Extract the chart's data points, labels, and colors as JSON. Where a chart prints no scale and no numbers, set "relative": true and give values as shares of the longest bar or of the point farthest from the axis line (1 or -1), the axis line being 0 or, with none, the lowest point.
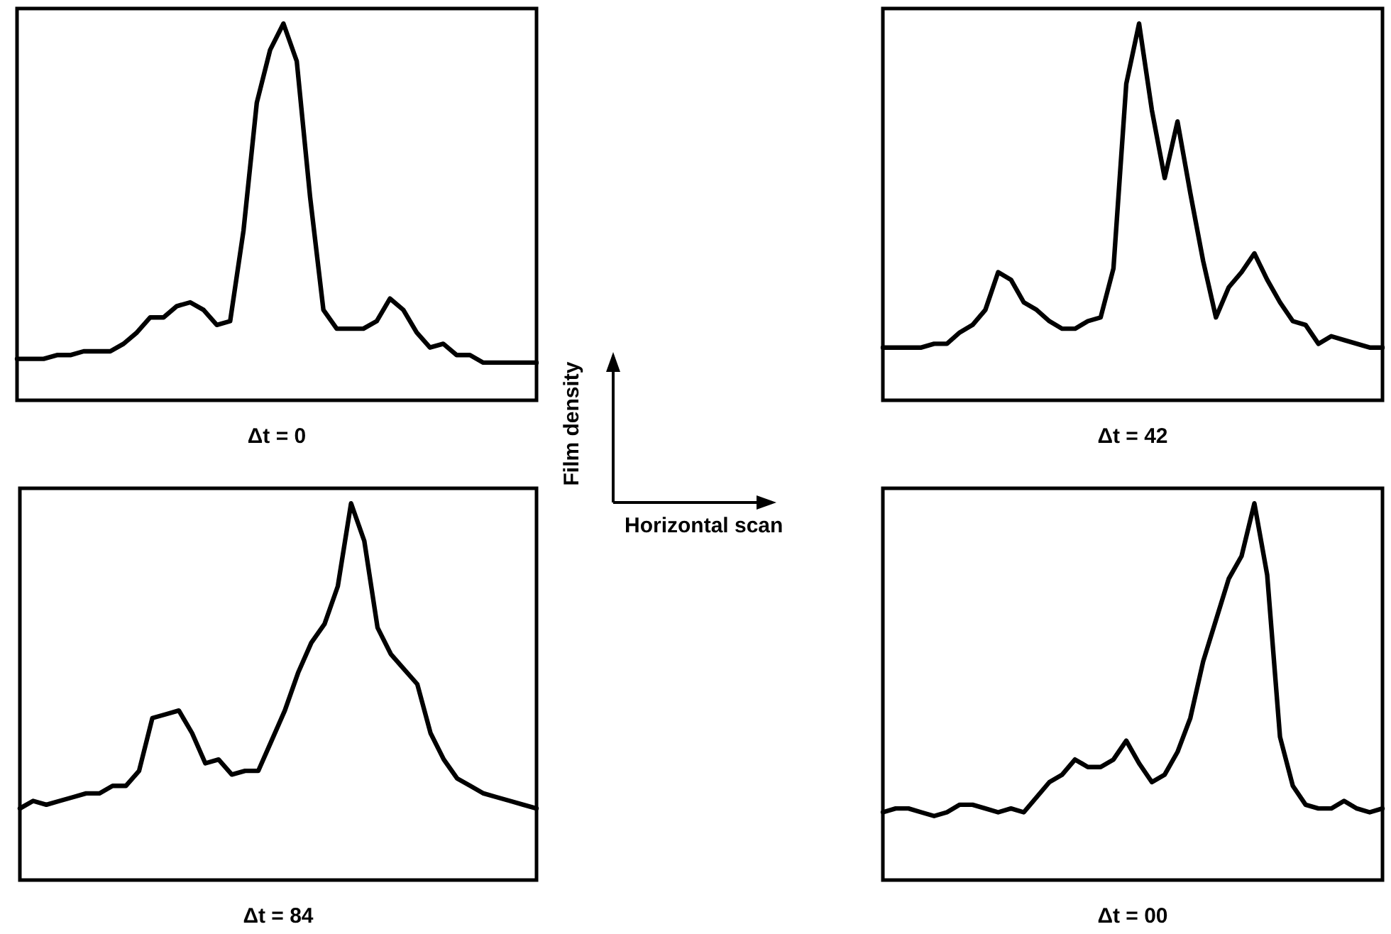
{
  "chart_data": [
    {
      "type": "line",
      "xlabel": "Δt = 0",
      "relative": true,
      "marker": "none",
      "color": "#000000",
      "categories": [
        null,
        null,
        null,
        null,
        null,
        null,
        null,
        null,
        null,
        null,
        null,
        null,
        null,
        null,
        null,
        null,
        null,
        null,
        null,
        null,
        null,
        null,
        null,
        null,
        null,
        null,
        null,
        null,
        null,
        null,
        null,
        null,
        null,
        null,
        null,
        null,
        null,
        null,
        null,
        null
      ],
      "values": [
        0.11,
        0.11,
        0.11,
        0.12,
        0.12,
        0.13,
        0.13,
        0.13,
        0.15,
        0.18,
        0.22,
        0.22,
        0.25,
        0.26,
        0.24,
        0.2,
        0.21,
        0.45,
        0.79,
        0.93,
        1,
        0.9,
        0.54,
        0.24,
        0.19,
        0.19,
        0.19,
        0.21,
        0.27,
        0.24,
        0.18,
        0.14,
        0.15,
        0.12,
        0.12,
        0.1,
        0.1,
        0.1,
        0.1,
        0.1
      ]
    },
    {
      "type": "line",
      "xlabel": "Δt = 42",
      "relative": true,
      "marker": "none",
      "color": "#000000",
      "categories": [
        null,
        null,
        null,
        null,
        null,
        null,
        null,
        null,
        null,
        null,
        null,
        null,
        null,
        null,
        null,
        null,
        null,
        null,
        null,
        null,
        null,
        null,
        null,
        null,
        null,
        null,
        null,
        null,
        null,
        null,
        null,
        null,
        null,
        null,
        null,
        null,
        null,
        null,
        null,
        null
      ],
      "values": [
        0.14,
        0.14,
        0.14,
        0.14,
        0.15,
        0.15,
        0.18,
        0.2,
        0.24,
        0.34,
        0.32,
        0.26,
        0.24,
        0.21,
        0.19,
        0.19,
        0.21,
        0.22,
        0.35,
        0.84,
        1,
        0.77,
        0.59,
        0.74,
        0.55,
        0.37,
        0.22,
        0.3,
        0.34,
        0.39,
        0.32,
        0.26,
        0.21,
        0.2,
        0.15,
        0.17,
        0.16,
        0.15,
        0.14,
        0.14
      ]
    },
    {
      "type": "other",
      "annotations": [
        "Film density",
        "Horizontal scan"
      ]
    },
    {
      "type": "line",
      "xlabel": "Δt = 84",
      "relative": true,
      "marker": "none",
      "color": "#000000",
      "categories": [
        null,
        null,
        null,
        null,
        null,
        null,
        null,
        null,
        null,
        null,
        null,
        null,
        null,
        null,
        null,
        null,
        null,
        null,
        null,
        null,
        null,
        null,
        null,
        null,
        null,
        null,
        null,
        null,
        null,
        null,
        null,
        null,
        null,
        null,
        null,
        null,
        null,
        null,
        null,
        null
      ],
      "values": [
        0.19,
        0.21,
        0.2,
        0.21,
        0.22,
        0.23,
        0.23,
        0.25,
        0.25,
        0.29,
        0.43,
        0.44,
        0.45,
        0.39,
        0.31,
        0.32,
        0.28,
        0.29,
        0.29,
        0.37,
        0.45,
        0.55,
        0.63,
        0.68,
        0.78,
        1,
        0.9,
        0.67,
        0.6,
        0.56,
        0.52,
        0.39,
        0.32,
        0.27,
        0.25,
        0.23,
        0.22,
        0.21,
        0.2,
        0.19
      ]
    },
    {
      "type": "line",
      "xlabel": "Δt = 00",
      "relative": true,
      "marker": "none",
      "color": "#000000",
      "categories": [
        null,
        null,
        null,
        null,
        null,
        null,
        null,
        null,
        null,
        null,
        null,
        null,
        null,
        null,
        null,
        null,
        null,
        null,
        null,
        null,
        null,
        null,
        null,
        null,
        null,
        null,
        null,
        null,
        null,
        null,
        null,
        null,
        null,
        null,
        null,
        null,
        null,
        null,
        null,
        null
      ],
      "values": [
        0.18,
        0.19,
        0.19,
        0.18,
        0.17,
        0.18,
        0.2,
        0.2,
        0.19,
        0.18,
        0.19,
        0.18,
        0.22,
        0.26,
        0.28,
        0.32,
        0.3,
        0.3,
        0.32,
        0.37,
        0.31,
        0.26,
        0.28,
        0.34,
        0.43,
        0.58,
        0.69,
        0.8,
        0.86,
        1,
        0.81,
        0.38,
        0.25,
        0.2,
        0.19,
        0.19,
        0.21,
        0.19,
        0.18,
        0.19
      ]
    }
  ]
}
